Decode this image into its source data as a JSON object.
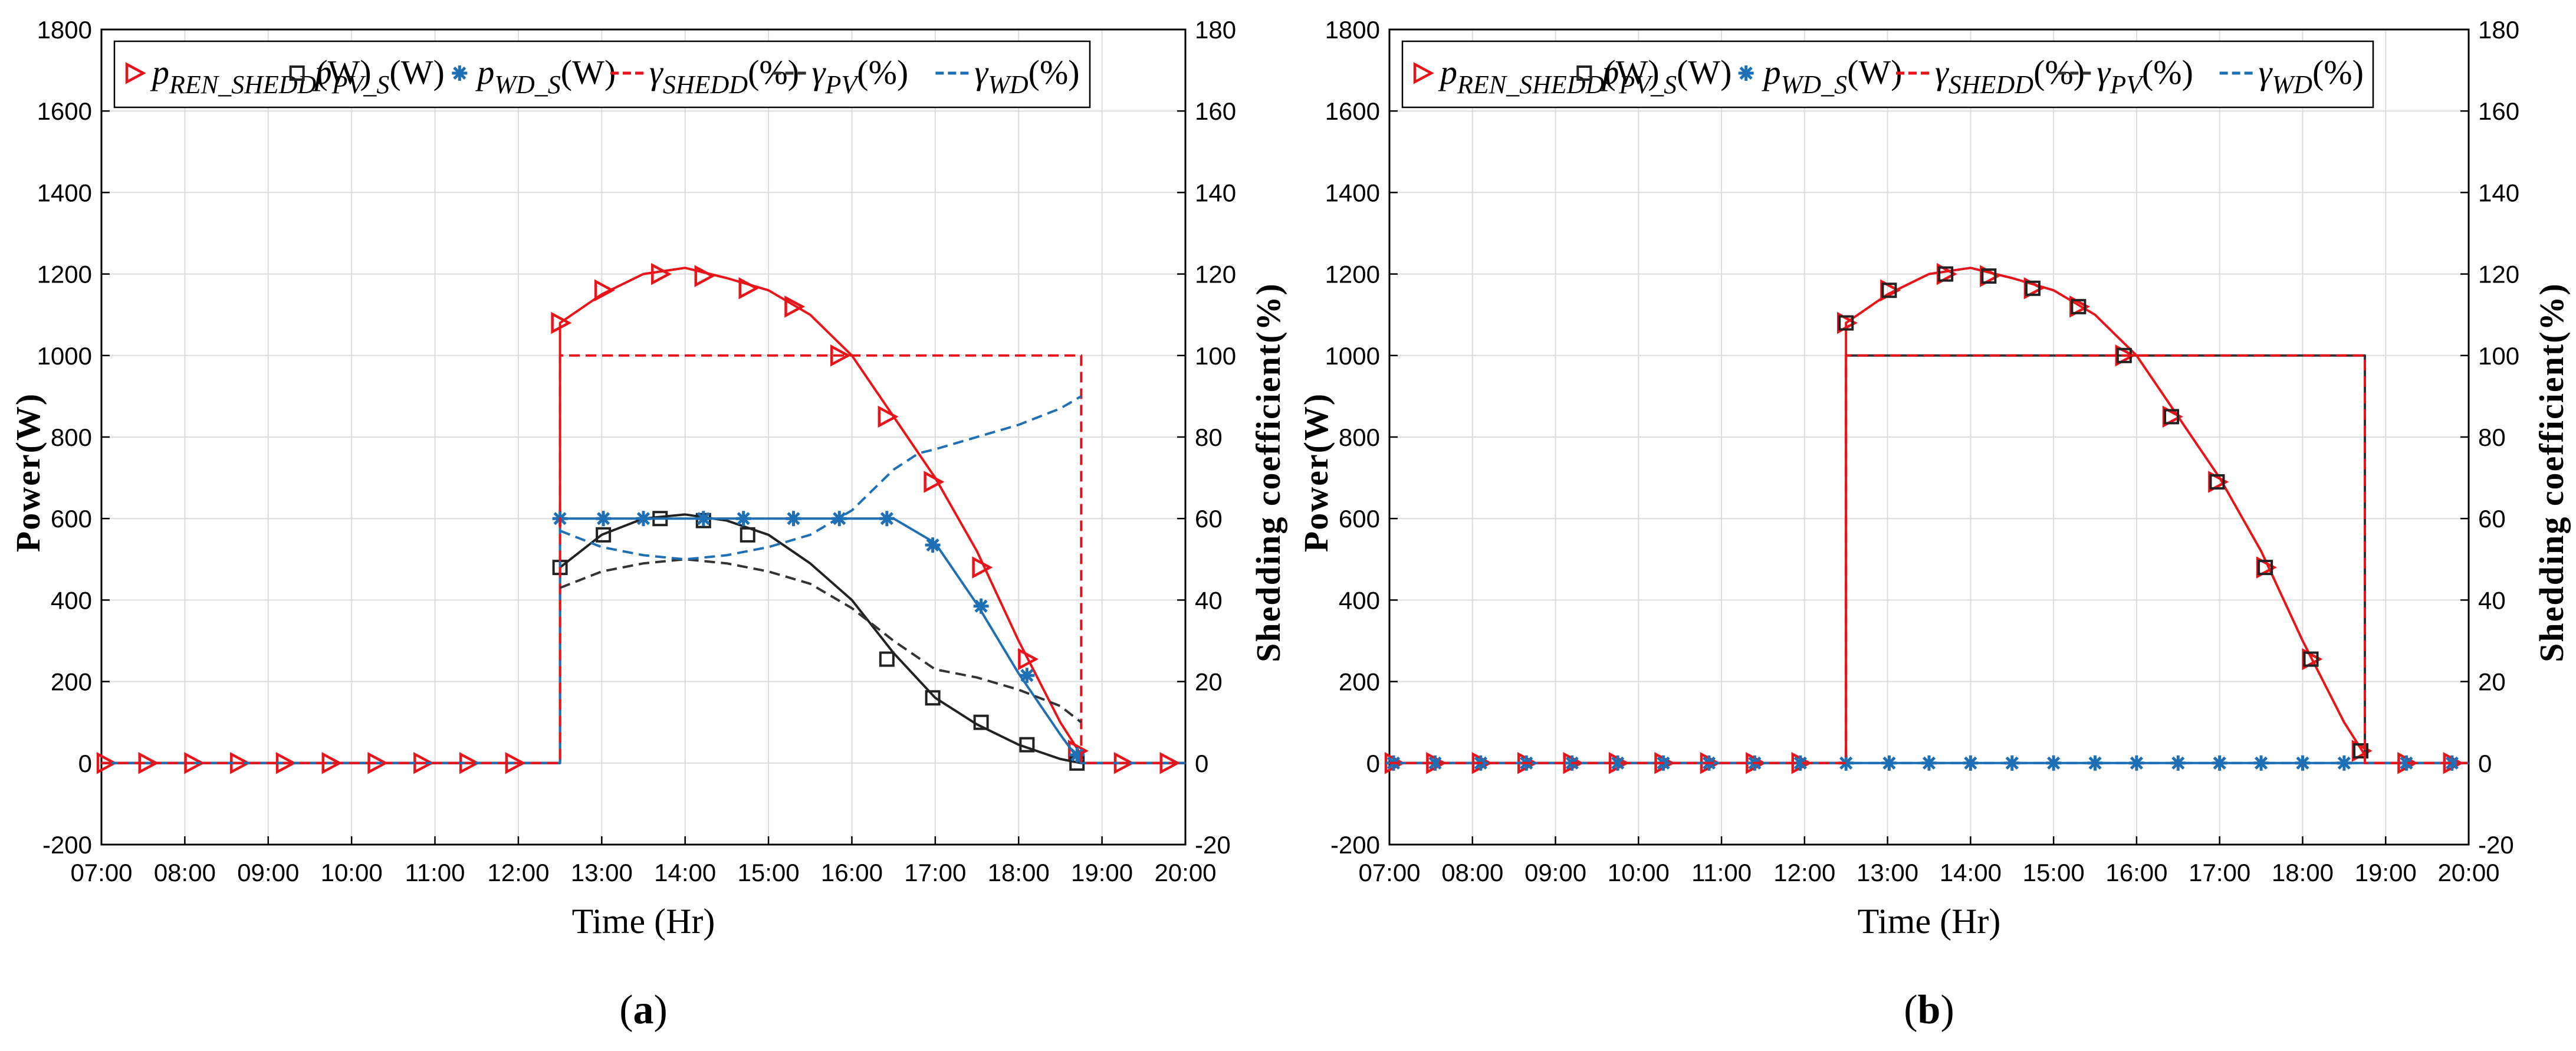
{
  "chart_data": [
    {
      "type": "line",
      "panel_label": "(a)",
      "panel_letter": "a",
      "xlabel": "Time (Hr)",
      "ylabel_left": "Power(W)",
      "ylabel_right": "Shedding coefficient(%)",
      "x_ticks": [
        "07:00",
        "08:00",
        "09:00",
        "10:00",
        "11:00",
        "12:00",
        "13:00",
        "14:00",
        "15:00",
        "16:00",
        "17:00",
        "18:00",
        "19:00",
        "20:00"
      ],
      "y_ticks_left": [
        "-200",
        "0",
        "200",
        "400",
        "600",
        "800",
        "1000",
        "1200",
        "1400",
        "1600",
        "1800"
      ],
      "y_ticks_right": [
        "-20",
        "0",
        "20",
        "40",
        "60",
        "80",
        "100",
        "120",
        "140",
        "160",
        "180"
      ],
      "xlim": [
        7,
        20
      ],
      "ylim_left": [
        -200,
        1800
      ],
      "ylim_right": [
        -20,
        180
      ],
      "grid": true,
      "legend_position": "top",
      "legend": [
        {
          "base": "p",
          "sub": "REN_SHEDD",
          "unit": "(W)",
          "marker": "triangle-right",
          "color": "#e8141a"
        },
        {
          "base": "p",
          "sub": "PV_S",
          "unit": "(W)",
          "marker": "square",
          "color": "#222222"
        },
        {
          "base": "p",
          "sub": "WD_S",
          "unit": "(W)",
          "marker": "asterisk",
          "color": "#1f6fb5"
        },
        {
          "base": "γ",
          "sub": "SHEDD",
          "unit": "(%)",
          "marker": "dash",
          "color": "#e8141a"
        },
        {
          "base": "γ",
          "sub": "PV",
          "unit": "(%)",
          "marker": "dash",
          "color": "#333333"
        },
        {
          "base": "γ",
          "sub": "WD",
          "unit": "(%)",
          "marker": "dash",
          "color": "#1f6fb5"
        }
      ],
      "series": [
        {
          "name": "p_REN_SHEDD(W)",
          "axis": "left",
          "color": "#e8141a",
          "marker": "triangle-right",
          "style": "solid",
          "x": [
            7,
            12.5,
            12.5,
            13,
            13.5,
            14,
            14.5,
            15,
            15.5,
            16,
            16.5,
            17,
            17.5,
            18,
            18.5,
            18.75,
            18.75,
            20
          ],
          "y": [
            0,
            0,
            1080,
            1150,
            1200,
            1215,
            1190,
            1160,
            1100,
            1000,
            850,
            700,
            520,
            300,
            100,
            20,
            0,
            0
          ],
          "marker_x": [
            7.05,
            7.55,
            8.1,
            8.65,
            9.2,
            9.75,
            10.3,
            10.85,
            11.4,
            11.95,
            12.5,
            13.02,
            13.7,
            14.22,
            14.75,
            15.3,
            15.85,
            16.42,
            16.97,
            17.55,
            18.1,
            18.7,
            19.25,
            19.8
          ],
          "marker_y": [
            0,
            0,
            0,
            0,
            0,
            0,
            0,
            0,
            0,
            0,
            1080,
            1160,
            1200,
            1195,
            1165,
            1120,
            1000,
            850,
            690,
            480,
            255,
            30,
            0,
            0
          ]
        },
        {
          "name": "p_PV_S(W)",
          "axis": "left",
          "color": "#222222",
          "marker": "square",
          "style": "solid",
          "x": [
            7,
            12.5,
            12.5,
            13,
            13.5,
            14,
            14.5,
            15,
            15.5,
            16,
            16.5,
            17,
            17.5,
            18,
            18.5,
            18.75,
            20
          ],
          "y": [
            0,
            0,
            480,
            560,
            600,
            610,
            595,
            560,
            490,
            400,
            270,
            160,
            95,
            45,
            10,
            0,
            0
          ],
          "marker_x": [
            12.5,
            13.02,
            13.7,
            14.22,
            14.75,
            16.42,
            16.97,
            17.55,
            18.1,
            18.7
          ],
          "marker_y": [
            480,
            560,
            600,
            595,
            560,
            255,
            160,
            100,
            45,
            0
          ]
        },
        {
          "name": "p_WD_S(W)",
          "axis": "left",
          "color": "#1f6fb5",
          "marker": "asterisk",
          "style": "solid",
          "x": [
            7,
            12.5,
            12.5,
            16.5,
            17,
            17.5,
            18,
            18.5,
            18.75,
            20
          ],
          "y": [
            0,
            0,
            600,
            600,
            540,
            390,
            220,
            70,
            0,
            0
          ],
          "marker_x": [
            12.5,
            13.02,
            13.5,
            14.22,
            14.7,
            15.3,
            15.85,
            16.42,
            16.97,
            17.55,
            18.1,
            18.7
          ],
          "marker_y": [
            600,
            600,
            600,
            600,
            600,
            600,
            600,
            600,
            535,
            385,
            215,
            20
          ]
        },
        {
          "name": "γ_SHEDD(%)",
          "axis": "right",
          "color": "#e8141a",
          "style": "dashed",
          "x": [
            7,
            12.5,
            12.5,
            18.75,
            18.75,
            20
          ],
          "y": [
            0,
            0,
            100,
            100,
            0,
            0
          ]
        },
        {
          "name": "γ_PV(%)",
          "axis": "right",
          "color": "#333333",
          "style": "dashed",
          "x": [
            12.5,
            13,
            13.5,
            14,
            14.5,
            15,
            15.5,
            16,
            16.5,
            17,
            17.5,
            18,
            18.5,
            18.75
          ],
          "y": [
            43,
            47,
            49,
            50,
            49,
            47,
            44,
            38,
            30,
            23,
            21,
            18,
            14,
            10
          ]
        },
        {
          "name": "γ_WD(%)",
          "axis": "right",
          "color": "#1f6fb5",
          "style": "dashed",
          "x": [
            12.5,
            13,
            13.5,
            14,
            14.5,
            15,
            15.5,
            16,
            16.5,
            16.8,
            17,
            17.5,
            18,
            18.5,
            18.75
          ],
          "y": [
            57,
            53,
            51,
            50,
            51,
            53,
            56,
            62,
            72,
            76,
            77,
            80,
            83,
            87,
            90
          ]
        }
      ]
    },
    {
      "type": "line",
      "panel_label": "(b)",
      "panel_letter": "b",
      "xlabel": "Time (Hr)",
      "ylabel_left": "Power(W)",
      "ylabel_right": "Shedding coefficient(%)",
      "x_ticks": [
        "07:00",
        "08:00",
        "09:00",
        "10:00",
        "11:00",
        "12:00",
        "13:00",
        "14:00",
        "15:00",
        "16:00",
        "17:00",
        "18:00",
        "19:00",
        "20:00"
      ],
      "y_ticks_left": [
        "-200",
        "0",
        "200",
        "400",
        "600",
        "800",
        "1000",
        "1200",
        "1400",
        "1600",
        "1800"
      ],
      "y_ticks_right": [
        "-20",
        "0",
        "20",
        "40",
        "60",
        "80",
        "100",
        "120",
        "140",
        "160",
        "180"
      ],
      "xlim": [
        7,
        20
      ],
      "ylim_left": [
        -200,
        1800
      ],
      "ylim_right": [
        -20,
        180
      ],
      "grid": true,
      "legend_position": "top",
      "legend": [
        {
          "base": "p",
          "sub": "REN_SHEDD",
          "unit": "(W)",
          "marker": "triangle-right",
          "color": "#e8141a"
        },
        {
          "base": "p",
          "sub": "PV_S",
          "unit": "(W)",
          "marker": "square",
          "color": "#222222"
        },
        {
          "base": "p",
          "sub": "WD_S",
          "unit": "(W)",
          "marker": "asterisk",
          "color": "#1f6fb5"
        },
        {
          "base": "γ",
          "sub": "SHEDD",
          "unit": "(%)",
          "marker": "dash",
          "color": "#e8141a"
        },
        {
          "base": "γ",
          "sub": "PV",
          "unit": "(%)",
          "marker": "dash",
          "color": "#333333"
        },
        {
          "base": "γ",
          "sub": "WD",
          "unit": "(%)",
          "marker": "dash",
          "color": "#1f6fb5"
        }
      ],
      "series": [
        {
          "name": "γ_PV(%)",
          "axis": "right",
          "color": "#333333",
          "style": "solid",
          "x": [
            7,
            12.5,
            12.5,
            18.75,
            18.75,
            20
          ],
          "y": [
            0,
            0,
            100,
            100,
            0,
            0
          ]
        },
        {
          "name": "p_REN_SHEDD(W)",
          "axis": "left",
          "color": "#e8141a",
          "marker": "triangle-right",
          "style": "solid",
          "x": [
            7,
            12.5,
            12.5,
            13,
            13.5,
            14,
            14.5,
            15,
            15.5,
            16,
            16.5,
            17,
            17.5,
            18,
            18.5,
            18.75,
            18.75,
            20
          ],
          "y": [
            0,
            0,
            1080,
            1150,
            1200,
            1215,
            1190,
            1160,
            1100,
            1000,
            850,
            700,
            520,
            300,
            100,
            20,
            0,
            0
          ],
          "marker_x": [
            7.05,
            7.55,
            8.1,
            8.65,
            9.2,
            9.75,
            10.3,
            10.85,
            11.4,
            11.95,
            12.5,
            13.02,
            13.7,
            14.22,
            14.75,
            15.3,
            15.85,
            16.42,
            16.97,
            17.55,
            18.1,
            18.7,
            19.25,
            19.8
          ],
          "marker_y": [
            0,
            0,
            0,
            0,
            0,
            0,
            0,
            0,
            0,
            0,
            1080,
            1160,
            1200,
            1195,
            1165,
            1120,
            1000,
            850,
            690,
            480,
            255,
            30,
            0,
            0
          ]
        },
        {
          "name": "p_PV_S(W)",
          "axis": "left",
          "color": "#222222",
          "marker": "square",
          "style": "none",
          "x": [],
          "y": [],
          "marker_x": [
            12.5,
            13.02,
            13.7,
            14.22,
            14.75,
            15.3,
            15.85,
            16.42,
            16.97,
            17.55,
            18.1,
            18.7
          ],
          "marker_y": [
            1080,
            1160,
            1200,
            1195,
            1165,
            1120,
            1000,
            850,
            690,
            480,
            255,
            30
          ]
        },
        {
          "name": "p_WD_S(W)",
          "axis": "left",
          "color": "#1f6fb5",
          "marker": "asterisk",
          "style": "solid",
          "x": [
            7,
            20
          ],
          "y": [
            0,
            0
          ],
          "marker_x": [
            7.05,
            7.55,
            8.1,
            8.65,
            9.2,
            9.75,
            10.3,
            10.85,
            11.4,
            11.95,
            12.5,
            13.02,
            13.5,
            14.0,
            14.5,
            15.0,
            15.5,
            16.0,
            16.5,
            17.0,
            17.5,
            18.0,
            18.5,
            19.25,
            19.8
          ],
          "marker_y": [
            0,
            0,
            0,
            0,
            0,
            0,
            0,
            0,
            0,
            0,
            0,
            0,
            0,
            0,
            0,
            0,
            0,
            0,
            0,
            0,
            0,
            0,
            0,
            0,
            0
          ]
        },
        {
          "name": "γ_WD(%)",
          "axis": "right",
          "color": "#1f6fb5",
          "style": "dashed",
          "x": [
            7,
            20
          ],
          "y": [
            0,
            0
          ]
        },
        {
          "name": "γ_SHEDD(%)",
          "axis": "right",
          "color": "#e8141a",
          "style": "dashed",
          "x": [
            7,
            12.5,
            12.5,
            18.75,
            18.75,
            20
          ],
          "y": [
            0,
            0,
            100,
            100,
            0,
            0
          ]
        }
      ]
    }
  ]
}
